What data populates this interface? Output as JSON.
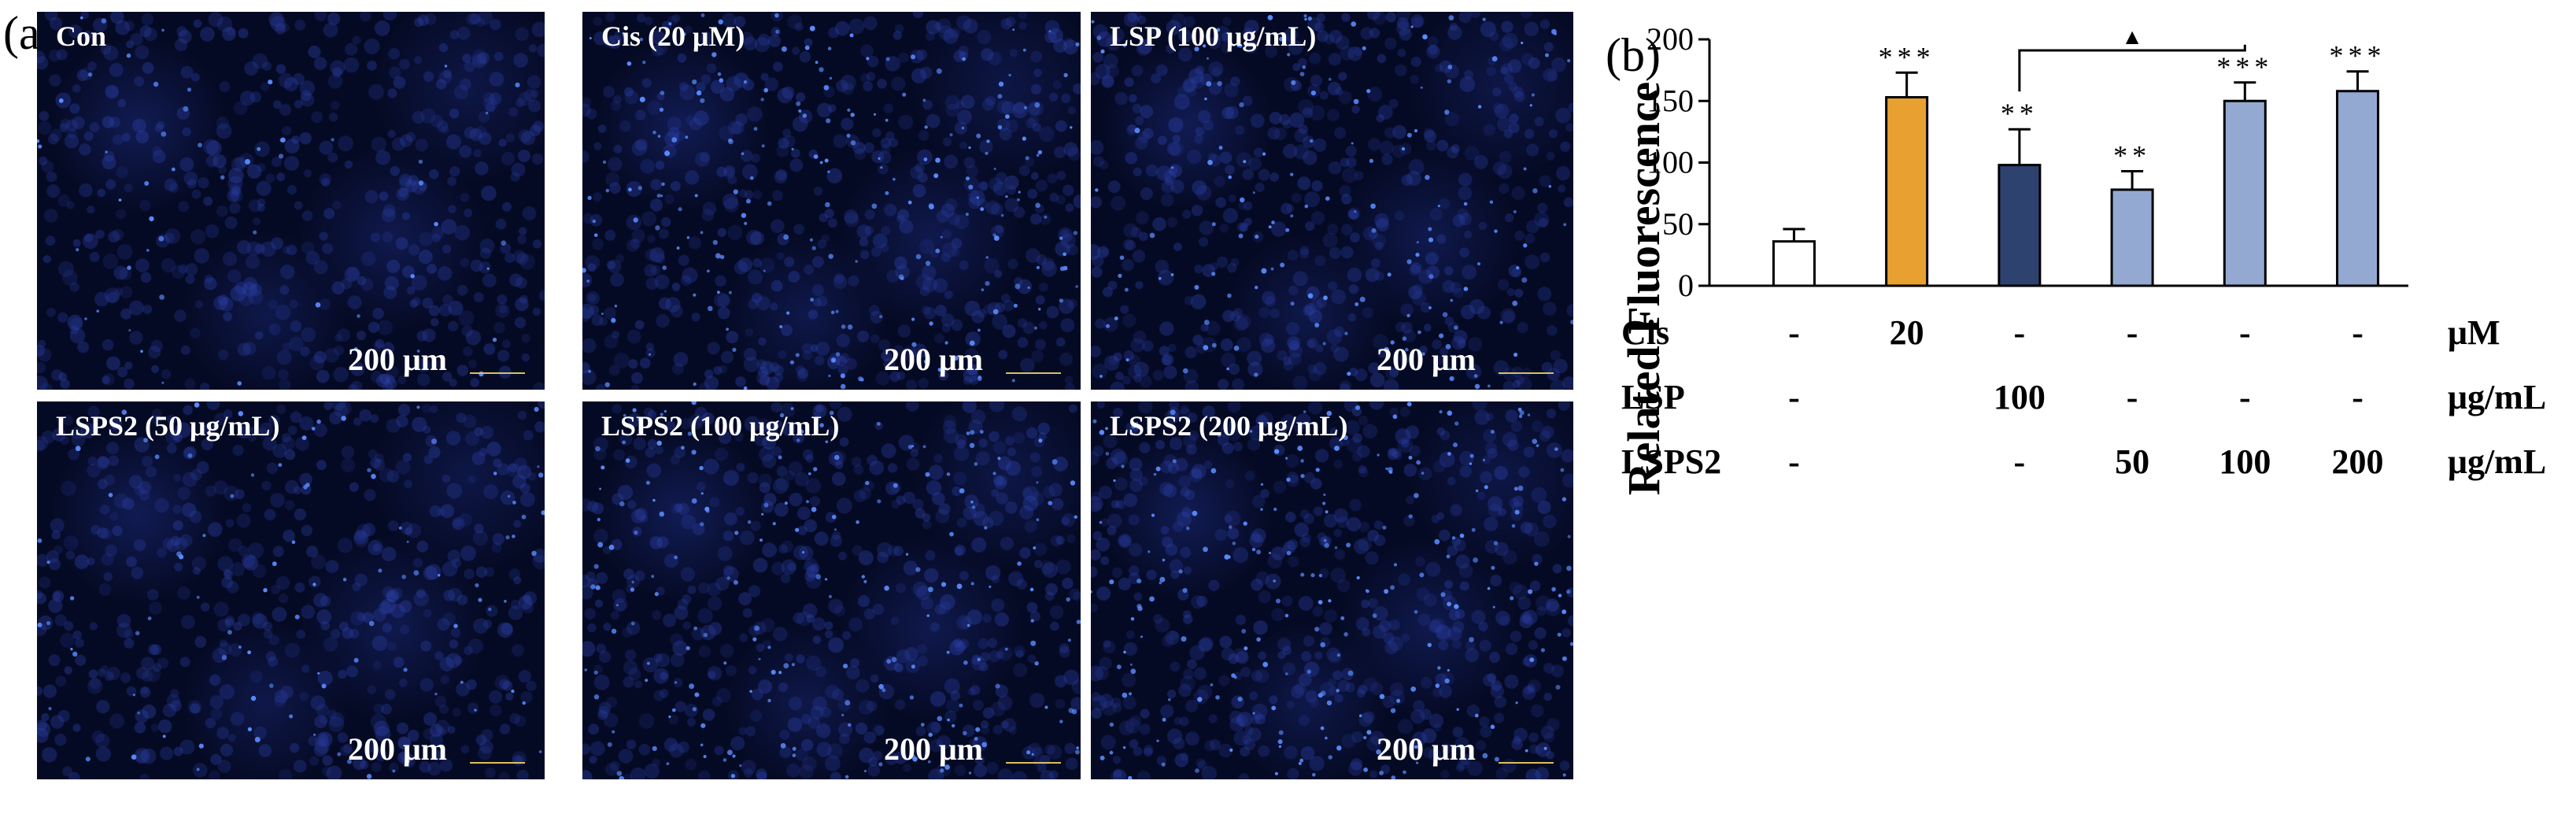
{
  "labels": {
    "a": "(a)",
    "b": "(b)"
  },
  "images": [
    {
      "caption": "Con",
      "scale": "200 μm",
      "density": 0.15
    },
    {
      "caption": "Cis (20 μM)",
      "scale": "200 μm",
      "density": 0.9
    },
    {
      "caption": "LSP (100 μg/mL)",
      "scale": "200 μm",
      "density": 0.6
    },
    {
      "caption": "LSPS2 (50 μg/mL)",
      "scale": "200 μm",
      "density": 0.35
    },
    {
      "caption": "LSPS2 (100 μg/mL)",
      "scale": "200 μm",
      "density": 0.85
    },
    {
      "caption": "LSPS2 (200 μg/mL)",
      "scale": "200 μm",
      "density": 0.95
    }
  ],
  "chart_data": {
    "type": "bar",
    "ylabel": "Related Fluorescence",
    "ylim": [
      0,
      200
    ],
    "yticks": [
      0,
      50,
      100,
      150,
      200
    ],
    "values": [
      36,
      153,
      98,
      78,
      150,
      158
    ],
    "errors": [
      10,
      20,
      29,
      15,
      15,
      16
    ],
    "colors": [
      "#ffffff",
      "#e8a030",
      "#2e4270",
      "#93a9d1",
      "#93a9d1",
      "#93a9d1"
    ],
    "significance": [
      "",
      "***",
      "**",
      "**",
      "***",
      "***"
    ],
    "bracket": {
      "from": 2,
      "to": 4,
      "symbol": "▲"
    },
    "condition_rows": [
      {
        "name": "Cis",
        "values": [
          "-",
          "20",
          "-",
          "-",
          "-",
          "-"
        ],
        "unit": "μM"
      },
      {
        "name": "LSP",
        "values": [
          "-",
          "",
          "100",
          "-",
          "-",
          "-"
        ],
        "unit": "μg/mL"
      },
      {
        "name": "LSPS2",
        "values": [
          "-",
          "",
          "-",
          "50",
          "100",
          "200"
        ],
        "unit": "μg/mL"
      }
    ]
  }
}
